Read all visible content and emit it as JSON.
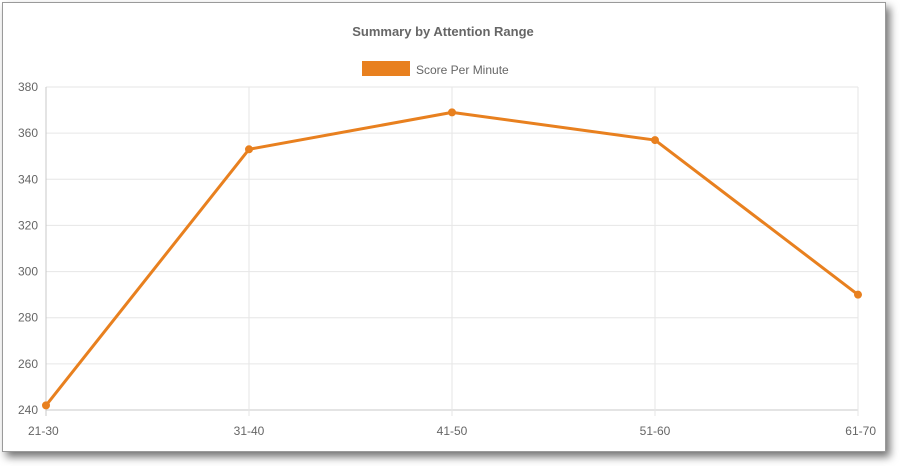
{
  "chart_data": {
    "type": "line",
    "title": "Summary by Attention Range",
    "categories": [
      "21-30",
      "31-40",
      "41-50",
      "51-60",
      "61-70"
    ],
    "series": [
      {
        "name": "Score Per Minute",
        "values": [
          242,
          353,
          369,
          357,
          290
        ],
        "color": "#e8801f"
      }
    ],
    "ylim": [
      240,
      380
    ],
    "yticks": [
      240,
      260,
      280,
      300,
      320,
      340,
      360,
      380
    ],
    "xlabel": "",
    "ylabel": "",
    "grid": true,
    "legend": "top-center",
    "colors": {
      "grid": "#e6e6e6",
      "axis": "#c8c8c8",
      "text": "#666666"
    }
  }
}
